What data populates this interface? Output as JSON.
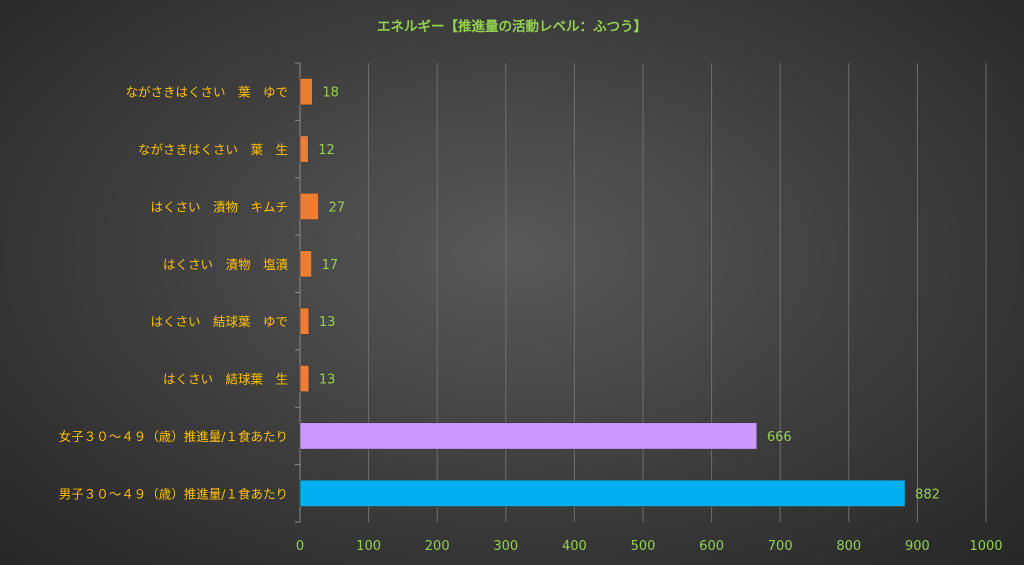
{
  "chart_data": {
    "type": "bar",
    "orientation": "horizontal",
    "title": "エネルギー【推進量の活動レベル：ふつう】",
    "categories": [
      "ながさきはくさい　葉　ゆで",
      "ながさきはくさい　葉　生",
      "はくさい　漬物　キムチ",
      "はくさい　漬物　塩漬",
      "はくさい　結球葉　ゆで",
      "はくさい　結球葉　生",
      "女子３０～４９（歳）推進量/１食あたり",
      "男子３０～４９（歳）推進量/１食あたり"
    ],
    "values": [
      18,
      12,
      27,
      17,
      13,
      13,
      666,
      882
    ],
    "data_labels": [
      "18",
      "12",
      "27",
      "17",
      "13",
      "13",
      "666",
      "882"
    ],
    "bar_colors": [
      "#ed7d31",
      "#ed7d31",
      "#ed7d31",
      "#ed7d31",
      "#ed7d31",
      "#ed7d31",
      "#cc99ff",
      "#00b0f0"
    ],
    "x_ticks": [
      0,
      100,
      200,
      300,
      400,
      500,
      600,
      700,
      800,
      900,
      1000
    ],
    "xlim": [
      0,
      1000
    ],
    "grid": true,
    "legend": "none",
    "colors": {
      "title": "#92d050",
      "category_labels": "#ffc000",
      "value_labels": "#92d050",
      "tick_labels": "#92d050",
      "gridlines": "#6e6e6e"
    }
  }
}
